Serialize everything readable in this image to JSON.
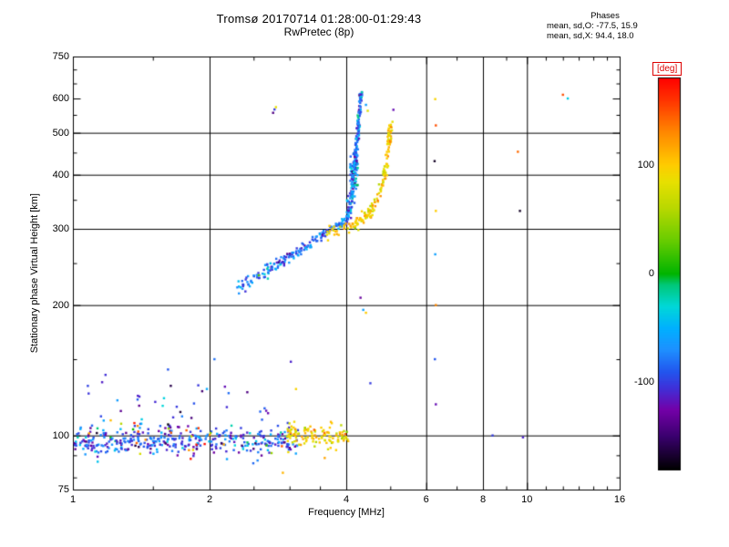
{
  "title": "Tromsø 20170714 01:28:00-01:29:43",
  "subtitle": "RwPretec (8p)",
  "stats": {
    "header": "Phases",
    "line_o": "mean, sd,O: -77.5, 15.9",
    "line_x": "mean, sd,X:  94.4, 18.0"
  },
  "chart_data": {
    "type": "scatter",
    "title": "Tromsø 20170714 01:28:00-01:29:43",
    "subtitle": "RwPretec (8p)",
    "xlabel": "Frequency [MHz]",
    "ylabel": "Stationary phase Virtual Height [km]",
    "x_scale": "log",
    "y_scale": "log",
    "xlim": [
      1,
      16
    ],
    "ylim": [
      75,
      750
    ],
    "x_ticks": [
      1,
      2,
      4,
      6,
      8,
      10,
      16
    ],
    "y_ticks": [
      75,
      100,
      200,
      300,
      400,
      500,
      600,
      750
    ],
    "x_minor_ticks": [
      1.5,
      2.5,
      3,
      3.5,
      5,
      7,
      9,
      11,
      12,
      13,
      14,
      15
    ],
    "y_minor_ticks": [
      80,
      90,
      150,
      250,
      350,
      450,
      550,
      650,
      700
    ],
    "x_gridlines": [
      2,
      4,
      6,
      8,
      10
    ],
    "y_gridlines": [
      100,
      200,
      300,
      400,
      500
    ],
    "grid": true,
    "colorbar": {
      "label": "[deg]",
      "ticks": [
        100,
        0,
        -100
      ],
      "min": -180,
      "max": 180,
      "stops": [
        [
          0,
          "#000000"
        ],
        [
          0.083,
          "#38006b"
        ],
        [
          0.153,
          "#7300a8"
        ],
        [
          0.208,
          "#4030d8"
        ],
        [
          0.25,
          "#2255ee"
        ],
        [
          0.306,
          "#1e90ff"
        ],
        [
          0.361,
          "#00b0ff"
        ],
        [
          0.417,
          "#00d8d8"
        ],
        [
          0.472,
          "#00c878"
        ],
        [
          0.5,
          "#00b400"
        ],
        [
          0.583,
          "#66cc00"
        ],
        [
          0.667,
          "#b8d800"
        ],
        [
          0.736,
          "#e8e000"
        ],
        [
          0.778,
          "#ffcc00"
        ],
        [
          0.861,
          "#ff8800"
        ],
        [
          0.944,
          "#ff3300"
        ],
        [
          1,
          "#ff0000"
        ]
      ]
    },
    "phase_stats": {
      "o_mean": -77.5,
      "o_sd": 15.9,
      "x_mean": 94.4,
      "x_sd": 18.0
    },
    "traces": [
      {
        "kind": "band",
        "name": "e-region-main",
        "n": 380,
        "f_min": 1.0,
        "f_max": 3.15,
        "h_mean": 97,
        "h_sd": 3.5,
        "phase_mean": -90,
        "phase_sd": 28
      },
      {
        "kind": "band",
        "name": "e-region-upper-scatter",
        "n": 55,
        "f_min": 1.05,
        "f_max": 2.7,
        "h_mean": 113,
        "h_sd": 11,
        "phase_mean": -95,
        "phase_sd": 45
      },
      {
        "kind": "band",
        "name": "e-region-yellow",
        "n": 120,
        "f_min": 2.95,
        "f_max": 4.05,
        "h_mean": 100,
        "h_sd": 3.5,
        "phase_mean": 95,
        "phase_sd": 22
      },
      {
        "kind": "band",
        "name": "e-region-warm-sprinkle",
        "n": 22,
        "f_min": 1.05,
        "f_max": 2.9,
        "h_mean": 97,
        "h_sd": 5,
        "phase_mean": 105,
        "phase_sd": 40
      },
      {
        "kind": "curve",
        "name": "f-region-o-trace",
        "n": 180,
        "f_jitter": 0.012,
        "h_sd": 4,
        "phase_mean": -80,
        "phase_sd": 25,
        "anchors": [
          [
            2.3,
            218
          ],
          [
            2.45,
            228
          ],
          [
            2.6,
            237
          ],
          [
            2.75,
            246
          ],
          [
            2.9,
            254
          ],
          [
            3.05,
            262
          ],
          [
            3.2,
            270
          ],
          [
            3.35,
            279
          ],
          [
            3.5,
            288
          ],
          [
            3.65,
            296
          ],
          [
            3.8,
            303
          ],
          [
            3.92,
            309
          ],
          [
            4.0,
            315
          ]
        ]
      },
      {
        "kind": "curve",
        "name": "f-region-o-asymptote",
        "n": 210,
        "f_jitter": 0.008,
        "h_sd": 9,
        "phase_mean": -75,
        "phase_sd": 32,
        "anchors": [
          [
            4.02,
            318
          ],
          [
            4.06,
            332
          ],
          [
            4.09,
            348
          ],
          [
            4.12,
            365
          ],
          [
            4.14,
            382
          ],
          [
            4.16,
            402
          ],
          [
            4.18,
            422
          ],
          [
            4.2,
            446
          ],
          [
            4.22,
            470
          ],
          [
            4.24,
            500
          ],
          [
            4.26,
            530
          ],
          [
            4.28,
            560
          ],
          [
            4.3,
            590
          ],
          [
            4.31,
            614
          ]
        ]
      },
      {
        "kind": "band",
        "name": "f-region-o-cloud",
        "n": 55,
        "f_min": 4.08,
        "f_max": 4.24,
        "h_mean": 405,
        "h_sd": 28,
        "phase_mean": -70,
        "phase_sd": 30
      },
      {
        "kind": "curve",
        "name": "f-region-x-trace",
        "n": 165,
        "f_jitter": 0.01,
        "h_sd": 5,
        "phase_mean": 95,
        "phase_sd": 18,
        "anchors": [
          [
            3.6,
            292
          ],
          [
            3.8,
            297
          ],
          [
            4.0,
            302
          ],
          [
            4.2,
            308
          ],
          [
            4.35,
            316
          ],
          [
            4.5,
            327
          ],
          [
            4.62,
            341
          ],
          [
            4.72,
            358
          ],
          [
            4.8,
            379
          ],
          [
            4.86,
            402
          ],
          [
            4.9,
            426
          ],
          [
            4.94,
            452
          ],
          [
            4.97,
            478
          ],
          [
            5.0,
            505
          ],
          [
            5.02,
            524
          ]
        ]
      },
      {
        "kind": "points",
        "name": "sporadic-echoes",
        "pts": [
          [
            2.76,
            556,
            -140
          ],
          [
            2.78,
            566,
            -100
          ],
          [
            2.8,
            573,
            85
          ],
          [
            2.9,
            82,
            110
          ],
          [
            3.02,
            148,
            -110
          ],
          [
            3.1,
            128,
            95
          ],
          [
            4.3,
            208,
            -130
          ],
          [
            4.36,
            195,
            -60
          ],
          [
            4.42,
            192,
            100
          ],
          [
            4.52,
            132,
            -100
          ],
          [
            4.42,
            580,
            -60
          ],
          [
            4.46,
            562,
            80
          ],
          [
            5.08,
            565,
            -120
          ],
          [
            6.28,
            598,
            95
          ],
          [
            6.3,
            520,
            150
          ],
          [
            6.26,
            430,
            -170
          ],
          [
            6.3,
            330,
            100
          ],
          [
            6.28,
            262,
            -60
          ],
          [
            6.3,
            200,
            130
          ],
          [
            6.27,
            150,
            -90
          ],
          [
            6.3,
            118,
            -120
          ],
          [
            8.4,
            100,
            -100
          ],
          [
            9.55,
            452,
            140
          ],
          [
            9.65,
            330,
            -170
          ],
          [
            9.8,
            99,
            -110
          ],
          [
            12.0,
            612,
            150
          ],
          [
            12.3,
            600,
            -35
          ],
          [
            1.18,
            138,
            -105
          ],
          [
            1.62,
            142,
            -90
          ],
          [
            2.05,
            150,
            -80
          ]
        ]
      }
    ]
  }
}
